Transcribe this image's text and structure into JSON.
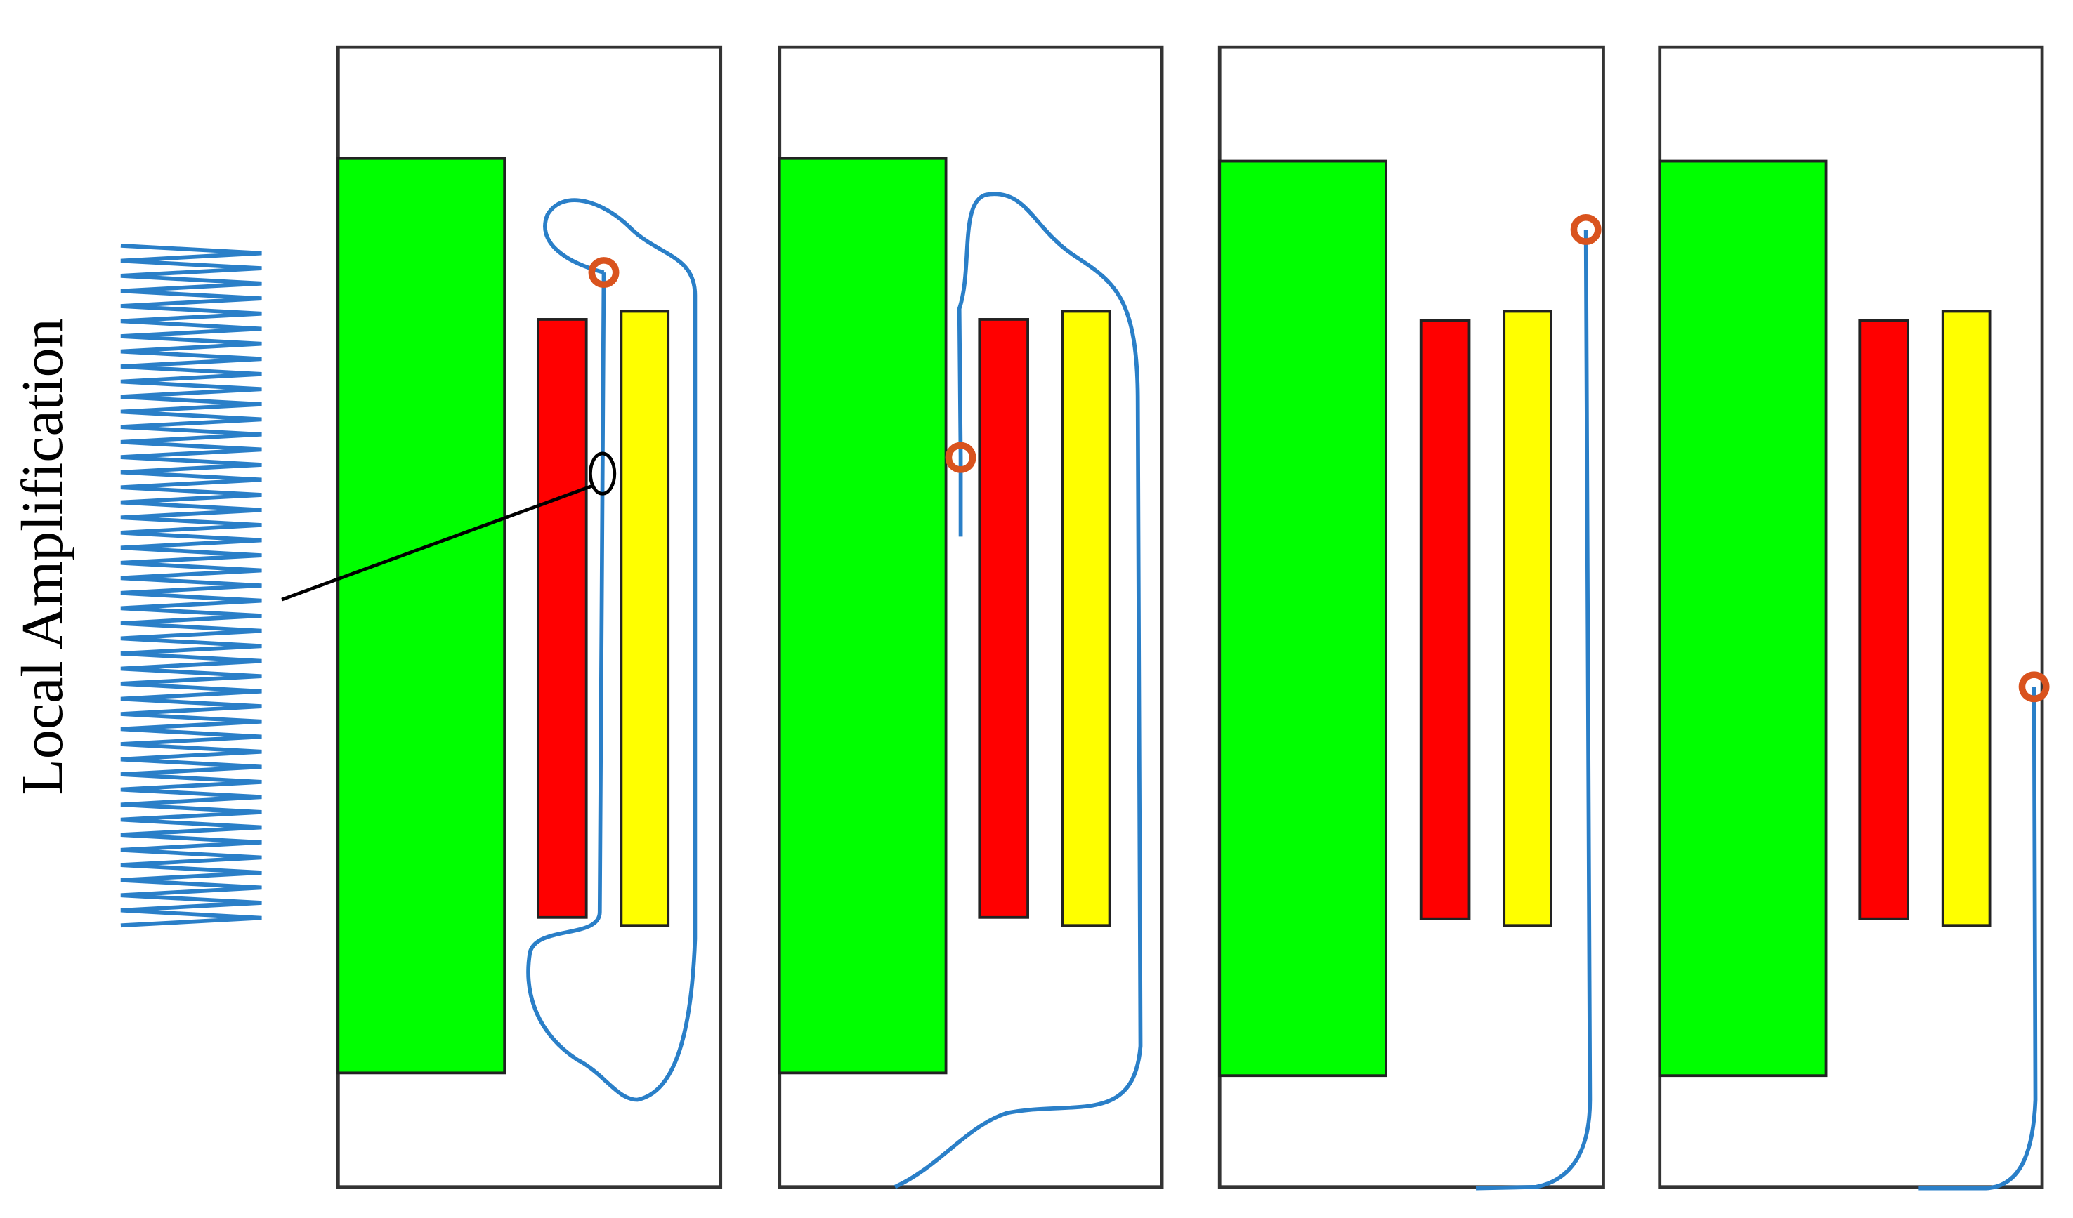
{
  "label": "Local Amplification"
}
